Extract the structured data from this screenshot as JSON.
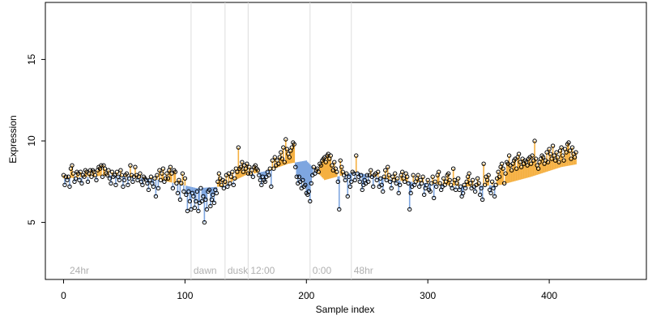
{
  "chart_data": {
    "type": "scatter",
    "xlabel": "Sample index",
    "ylabel": "Expression",
    "xlim": [
      -15,
      480
    ],
    "ylim": [
      1.5,
      18.5
    ],
    "x_ticks": [
      0,
      100,
      200,
      300,
      400
    ],
    "y_ticks": [
      5,
      10,
      15
    ],
    "grid": false,
    "annotations": [
      {
        "label": "24hr",
        "x": 3
      },
      {
        "label": "dawn",
        "x": 105
      },
      {
        "label": "dusk",
        "x": 133
      },
      {
        "label": "12:00",
        "x": 152
      },
      {
        "label": "0:00",
        "x": 203
      },
      {
        "label": "48hr",
        "x": 237
      }
    ],
    "vlines": [
      105,
      133,
      152,
      203,
      237
    ],
    "colors": {
      "above": "#f5b041",
      "below": "#7ea6e0",
      "points": "#000000",
      "vline": "#dddddd",
      "annotation": "#b0b0b0"
    },
    "baseline_anchors": [
      [
        0,
        7.7
      ],
      [
        40,
        7.9
      ],
      [
        80,
        7.6
      ],
      [
        110,
        7.1
      ],
      [
        130,
        7.2
      ],
      [
        150,
        7.9
      ],
      [
        170,
        8.2
      ],
      [
        185,
        8.6
      ],
      [
        200,
        8.8
      ],
      [
        215,
        7.6
      ],
      [
        240,
        8.1
      ],
      [
        270,
        7.6
      ],
      [
        300,
        7.4
      ],
      [
        330,
        7.2
      ],
      [
        360,
        7.3
      ],
      [
        385,
        7.8
      ],
      [
        410,
        8.4
      ],
      [
        440,
        8.8
      ],
      [
        462,
        9.0
      ]
    ],
    "series": [
      {
        "name": "",
        "y": [
          7.9,
          7.3,
          7.8,
          7.6,
          7.8,
          7.2,
          8.3,
          8.5,
          8.0,
          7.5,
          7.7,
          8.1,
          8.0,
          7.6,
          8.1,
          7.4,
          7.9,
          7.8,
          8.2,
          8.1,
          7.5,
          8.0,
          8.2,
          7.8,
          8.2,
          8.1,
          7.9,
          7.6,
          8.2,
          8.4,
          8.3,
          8.5,
          7.8,
          8.5,
          8.3,
          8.0,
          7.9,
          8.2,
          7.7,
          7.4,
          8.1,
          7.8,
          7.9,
          7.3,
          8.1,
          7.8,
          7.6,
          8.2,
          7.9,
          7.2,
          7.6,
          7.9,
          8.0,
          7.3,
          7.7,
          8.5,
          7.9,
          7.5,
          7.8,
          8.4,
          7.9,
          7.6,
          7.8,
          8.0,
          7.5,
          7.3,
          7.8,
          7.7,
          7.6,
          7.4,
          7.0,
          7.6,
          7.8,
          7.4,
          7.2,
          7.7,
          6.6,
          7.9,
          7.1,
          8.2,
          7.6,
          8.0,
          8.3,
          7.5,
          7.7,
          8.0,
          7.7,
          8.2,
          8.4,
          8.0,
          7.1,
          8.2,
          8.1,
          7.4,
          6.8,
          7.6,
          6.4,
          7.4,
          8.0,
          6.9,
          7.7,
          6.7,
          5.7,
          6.9,
          6.3,
          5.8,
          6.8,
          6.6,
          5.9,
          6.3,
          6.9,
          5.7,
          6.2,
          7.1,
          6.3,
          6.6,
          5.0,
          6.4,
          5.8,
          6.9,
          7.0,
          6.0,
          6.4,
          6.7,
          6.2,
          7.0,
          6.8,
          7.5,
          8.0,
          7.7,
          7.3,
          7.6,
          7.1,
          7.5,
          7.9,
          7.2,
          8.0,
          7.4,
          7.8,
          8.1,
          7.3,
          7.7,
          8.3,
          8.1,
          9.6,
          8.3,
          8.4,
          8.7,
          8.1,
          8.5,
          8.3,
          8.6,
          8.0,
          8.4,
          8.0,
          8.2,
          7.8,
          8.4,
          8.5,
          8.3,
          8.2,
          7.9,
          7.6,
          7.3,
          7.8,
          7.6,
          7.5,
          7.8,
          8.1,
          7.9,
          8.3,
          7.2,
          8.8,
          8.3,
          9.0,
          8.5,
          8.8,
          8.6,
          9.0,
          9.3,
          8.9,
          9.6,
          8.7,
          10.1,
          9.5,
          9.2,
          9.0,
          9.4,
          9.6,
          9.9,
          9.8,
          8.4,
          7.8,
          7.4,
          7.8,
          7.5,
          7.1,
          7.6,
          7.2,
          7.3,
          6.8,
          6.7,
          6.9,
          6.3,
          7.4,
          7.9,
          8.4,
          8.0,
          8.2,
          8.3,
          8.1,
          8.6,
          8.5,
          8.8,
          8.9,
          9.0,
          8.7,
          9.1,
          9.2,
          8.9,
          9.1,
          8.5,
          8.2,
          8.7,
          8.3,
          8.1,
          7.5,
          5.8,
          8.8,
          8.4,
          8.1,
          7.9,
          7.6,
          8.0,
          6.6,
          7.8,
          7.2,
          7.5,
          8.1,
          8.0,
          7.6,
          9.1,
          8.0,
          7.8,
          7.5,
          7.9,
          7.0,
          7.3,
          7.6,
          7.4,
          7.9,
          7.5,
          7.9,
          8.2,
          7.8,
          7.2,
          7.9,
          8.0,
          7.6,
          8.1,
          7.2,
          7.7,
          7.3,
          6.9,
          7.8,
          8.2,
          7.6,
          8.4,
          7.9,
          7.5,
          7.1,
          7.8,
          7.6,
          8.0,
          7.4,
          7.7,
          6.8,
          7.3,
          7.9,
          8.1,
          7.7,
          7.5,
          8.0,
          7.8,
          7.4,
          5.8,
          6.8,
          7.2,
          7.9,
          7.3,
          7.5,
          7.7,
          7.9,
          7.2,
          7.6,
          7.4,
          7.8,
          6.7,
          7.1,
          7.3,
          7.6,
          7.0,
          6.9,
          7.4,
          7.8,
          6.5,
          7.5,
          7.2,
          7.9,
          8.1,
          7.4,
          7.0,
          7.2,
          7.7,
          7.3,
          7.5,
          7.9,
          8.0,
          7.6,
          7.3,
          7.1,
          8.3,
          7.6,
          7.0,
          7.4,
          7.7,
          7.0,
          7.2,
          6.6,
          6.8,
          7.3,
          7.1,
          7.5,
          7.8,
          8.0,
          7.4,
          7.1,
          7.6,
          7.2,
          6.9,
          7.3,
          7.7,
          7.4,
          6.7,
          7.1,
          6.4,
          8.6,
          7.3,
          7.8,
          7.6,
          7.9,
          7.0,
          6.8,
          7.5,
          7.1,
          6.6,
          7.3,
          7.7,
          8.1,
          7.8,
          8.4,
          8.6,
          8.3,
          7.4,
          8.0,
          8.7,
          8.6,
          9.1,
          8.5,
          8.2,
          8.6,
          8.8,
          8.9,
          8.3,
          9.0,
          9.2,
          8.7,
          8.4,
          8.9,
          8.6,
          8.8,
          8.7,
          8.5,
          8.9,
          9.0,
          8.6,
          9.1,
          8.8,
          10.0,
          8.9,
          8.5,
          8.3,
          8.7,
          8.9,
          9.1,
          9.0,
          8.6,
          8.8,
          9.3,
          8.7,
          9.5,
          9.2,
          8.9,
          9.7,
          9.1,
          8.8,
          9.3,
          9.0,
          8.7,
          9.4,
          9.6,
          9.1,
          8.8,
          9.5,
          9.3,
          9.8,
          9.9,
          9.4,
          8.9,
          9.6,
          9.2,
          9.0,
          9.3
        ]
      }
    ]
  }
}
